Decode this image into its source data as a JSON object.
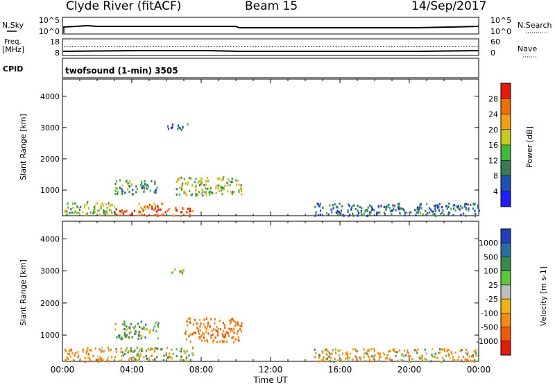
{
  "header": {
    "station": "Clyde River (fitACF)",
    "beam": "Beam 15",
    "date": "14/Sep/2017"
  },
  "noise_panel": {
    "left_label": "N.Sky",
    "left_ticks": [
      "10^5",
      "10^0"
    ],
    "right_label": "N.Search",
    "right_ticks": [
      "10^5",
      "10^0"
    ]
  },
  "freq_panel": {
    "left_label_1": "Freq.",
    "left_label_2": "[MHz]",
    "left_ticks": [
      "18",
      "8"
    ],
    "right_label": "Nave",
    "right_ticks": [
      "60",
      "0"
    ]
  },
  "cpid_panel": {
    "label": "CPID",
    "text": "twofsound (1-min) 3505"
  },
  "time_axis": {
    "title": "Time UT",
    "ticks": [
      "00:00",
      "04:00",
      "08:00",
      "12:00",
      "16:00",
      "20:00",
      "00:00"
    ]
  },
  "colors": {
    "power_scale": [
      "#1f1ff5",
      "#2050b0",
      "#3a7a55",
      "#44b83c",
      "#c8c81e",
      "#f0a014",
      "#f06e0a",
      "#e21e0a"
    ],
    "velocity_scale": [
      "#1f3fbf",
      "#2a6ea0",
      "#3c8a4a",
      "#5ac83c",
      "#bebebe",
      "#f0b414",
      "#f08c14",
      "#ee5a0a",
      "#e21e0a"
    ]
  },
  "chart_data": [
    {
      "type": "heatmap",
      "title": "Power",
      "ylabel": "Slant Range [km]",
      "xlabel": "Time UT",
      "ylim": [
        180,
        4550
      ],
      "xlim": [
        0,
        24
      ],
      "yticks": [
        "1000",
        "2000",
        "3000",
        "4000"
      ],
      "colorbar": {
        "label": "Power [dB]",
        "range": [
          0,
          32
        ],
        "tick_labels": [
          "4",
          "8",
          "12",
          "16",
          "20",
          "24",
          "28"
        ]
      },
      "scatter_regions": [
        {
          "t_start": 0.1,
          "t_end": 3.0,
          "range_start": 200,
          "range_end": 650,
          "value": 16
        },
        {
          "t_start": 3.0,
          "t_end": 7.5,
          "range_start": 200,
          "range_end": 450,
          "value": 28
        },
        {
          "t_start": 3.0,
          "t_end": 5.5,
          "range_start": 900,
          "range_end": 1350,
          "value": 12
        },
        {
          "t_start": 4.3,
          "t_end": 5.8,
          "range_start": 400,
          "range_end": 650,
          "value": 24
        },
        {
          "t_start": 6.5,
          "t_end": 10.3,
          "range_start": 850,
          "range_end": 1450,
          "value": 16
        },
        {
          "t_start": 6.0,
          "t_end": 7.2,
          "range_start": 2950,
          "range_end": 3150,
          "value": 8
        },
        {
          "t_start": 14.5,
          "t_end": 24.0,
          "range_start": 200,
          "range_end": 600,
          "value": 8
        }
      ]
    },
    {
      "type": "heatmap",
      "title": "Velocity",
      "ylabel": "Slant Range [km]",
      "xlabel": "Time UT",
      "ylim": [
        180,
        4550
      ],
      "xlim": [
        0,
        24
      ],
      "yticks": [
        "1000",
        "2000",
        "3000",
        "4000"
      ],
      "colorbar": {
        "label": "Velocity [m s-1]",
        "range": [
          -1500,
          1500
        ],
        "tick_labels": [
          "1000",
          "500",
          "100",
          "25",
          "-25",
          "-100",
          "-500",
          "-1000"
        ]
      },
      "scatter_regions": [
        {
          "t_start": 0.1,
          "t_end": 3.0,
          "range_start": 200,
          "range_end": 650,
          "value": -300
        },
        {
          "t_start": 3.0,
          "t_end": 5.5,
          "range_start": 900,
          "range_end": 1450,
          "value": 200
        },
        {
          "t_start": 3.0,
          "t_end": 7.5,
          "range_start": 200,
          "range_end": 650,
          "value": 50
        },
        {
          "t_start": 7.0,
          "t_end": 10.3,
          "range_start": 800,
          "range_end": 1550,
          "value": -400
        },
        {
          "t_start": 6.2,
          "t_end": 7.0,
          "range_start": 2950,
          "range_end": 3150,
          "value": -60
        },
        {
          "t_start": 14.5,
          "t_end": 24.0,
          "range_start": 200,
          "range_end": 600,
          "value": -150
        }
      ]
    }
  ]
}
